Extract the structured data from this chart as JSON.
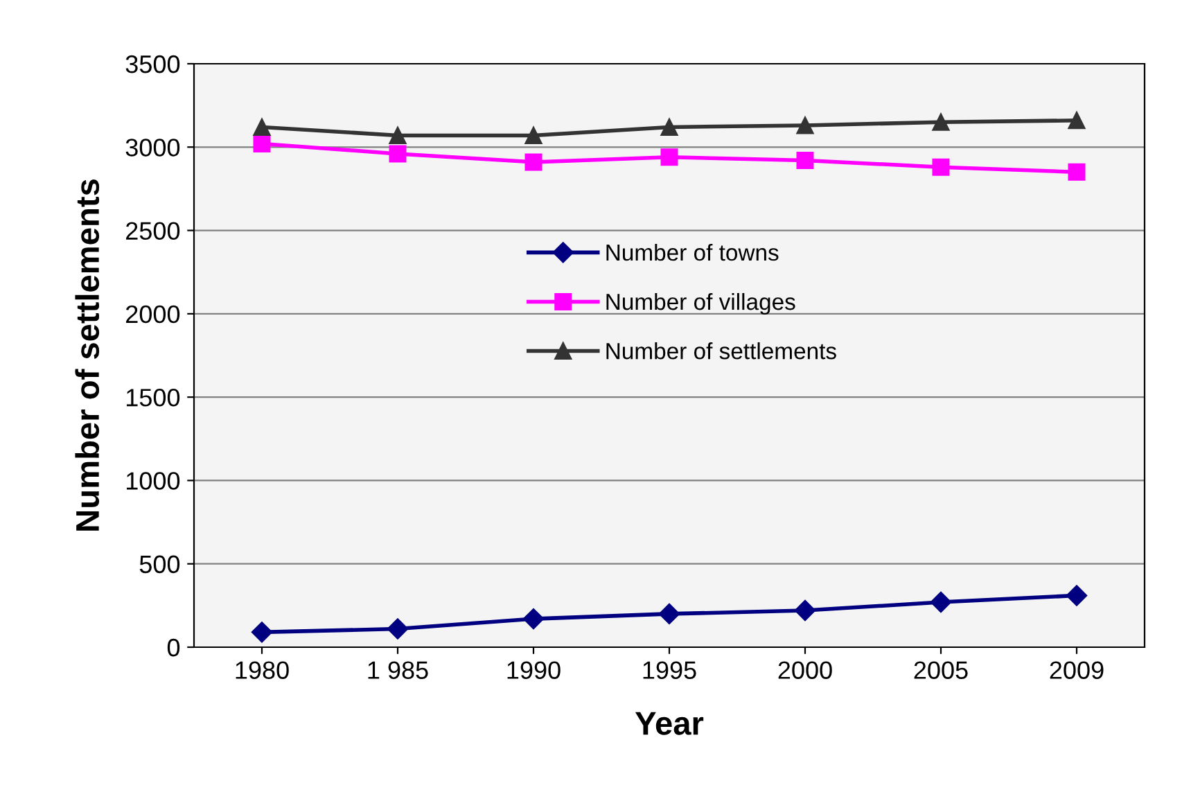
{
  "chart_data": {
    "type": "line",
    "xlabel": "Year",
    "ylabel": "Number of settlements",
    "categories": [
      "1980",
      "1 985",
      "1990",
      "1995",
      "2000",
      "2005",
      "2009"
    ],
    "series": [
      {
        "name": "Number of towns",
        "color": "#000080",
        "marker": "diamond",
        "values": [
          90,
          110,
          170,
          200,
          220,
          270,
          310
        ]
      },
      {
        "name": "Number of villages",
        "color": "#ff00ff",
        "marker": "square",
        "values": [
          3020,
          2960,
          2910,
          2940,
          2920,
          2880,
          2850
        ]
      },
      {
        "name": "Number of settlements",
        "color": "#333333",
        "marker": "triangle",
        "values": [
          3120,
          3070,
          3070,
          3120,
          3130,
          3150,
          3160
        ]
      }
    ],
    "ylim": [
      0,
      3500
    ],
    "yticks": [
      0,
      500,
      1000,
      1500,
      2000,
      2500,
      3000,
      3500
    ],
    "grid": "y",
    "legend": "center"
  }
}
